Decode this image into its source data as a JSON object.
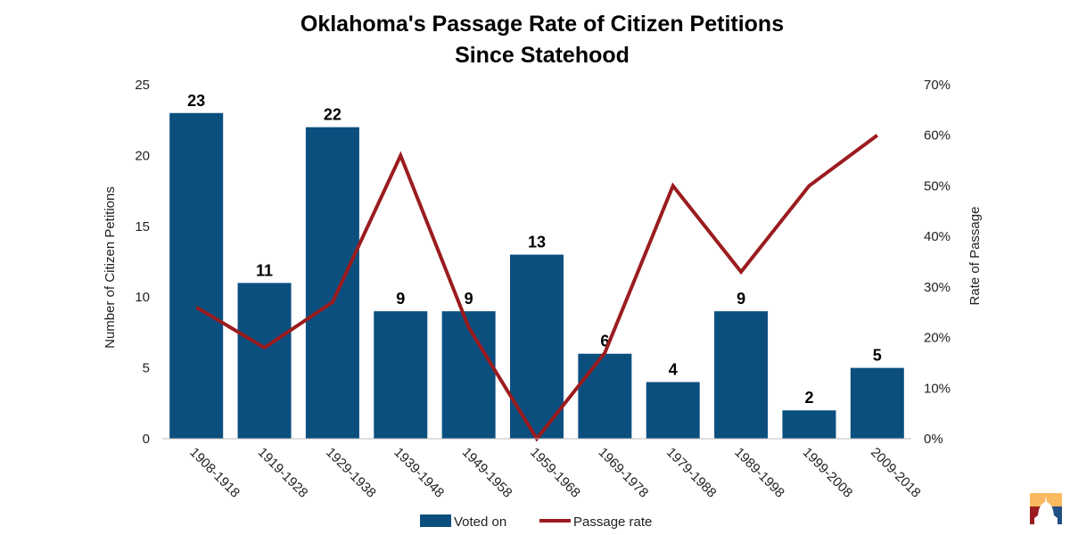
{
  "chart_data": {
    "type": "bar+line",
    "title": [
      "Oklahoma's Passage Rate of Citizen Petitions",
      "Since Statehood"
    ],
    "categories": [
      "1908-1918",
      "1919-1928",
      "1929-1938",
      "1939-1948",
      "1949-1958",
      "1959-1968",
      "1969-1978",
      "1979-1988",
      "1989-1998",
      "1999-2008",
      "2009-2018"
    ],
    "series": [
      {
        "name": "Voted on",
        "type": "bar",
        "axis": "left",
        "color": "#0b4f7f",
        "values": [
          23,
          11,
          22,
          9,
          9,
          13,
          6,
          4,
          9,
          2,
          5
        ]
      },
      {
        "name": "Passage rate",
        "type": "line",
        "axis": "right",
        "color": "#9b1c1f",
        "values": [
          26,
          18,
          27,
          56,
          22,
          0,
          17,
          50,
          33,
          50,
          60
        ]
      }
    ],
    "ylabel": "Number of Citizen Petitions",
    "ylim": [
      0,
      25
    ],
    "yticks": [
      "0",
      "5",
      "10",
      "15",
      "20",
      "25"
    ],
    "y2label": "Rate of Passage",
    "y2lim": [
      0,
      70
    ],
    "y2ticks": [
      "0%",
      "10%",
      "20%",
      "30%",
      "40%",
      "50%",
      "60%",
      "70%"
    ],
    "grid": false,
    "legend": "bottom"
  },
  "logo": {
    "icon": "capitol-dome-logo",
    "colors": [
      "#fbb95f",
      "#9b1c1f",
      "#234f85"
    ]
  }
}
